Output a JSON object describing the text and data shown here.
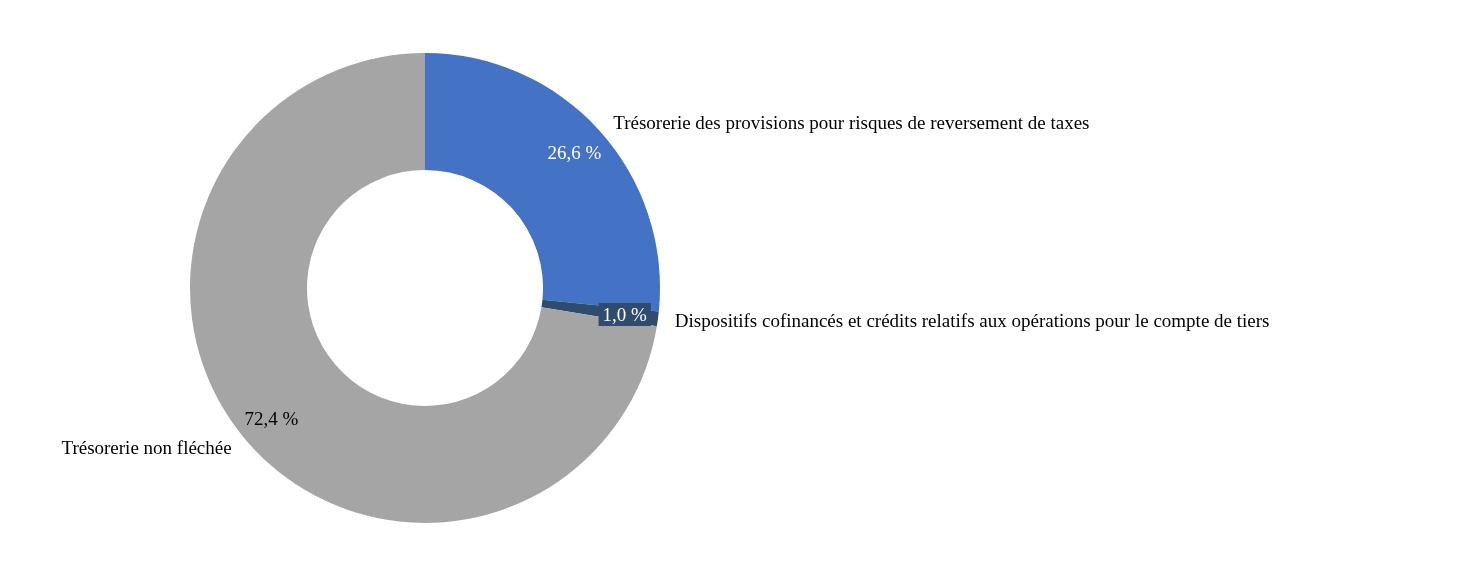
{
  "chart_data": {
    "type": "donut",
    "categories": [
      "Trésorerie des provisions pour risques de reversement de taxes",
      "Dispositifs cofinancés et crédits relatifs aux opérations pour le compte de tiers",
      "Trésorerie non fléchée"
    ],
    "values": [
      26.6,
      1.0,
      72.4
    ],
    "colors": [
      "#4472c4",
      "#2f4b6e",
      "#a5a5a5"
    ],
    "value_labels": [
      "26,6 %",
      "1,0 %",
      "72,4 %"
    ]
  }
}
